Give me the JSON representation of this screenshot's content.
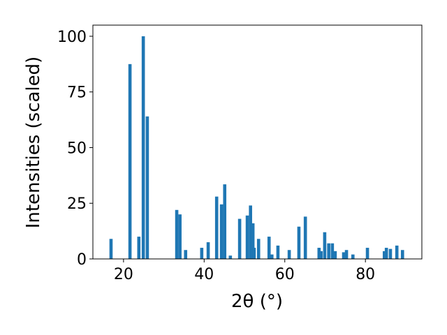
{
  "chart_data": {
    "type": "bar",
    "xlabel": "2θ (°)",
    "ylabel": "Intensities (scaled)",
    "x": [
      16.9,
      21.6,
      23.8,
      24.9,
      25.9,
      33.2,
      34.0,
      35.4,
      39.4,
      41.0,
      43.1,
      44.3,
      45.1,
      46.5,
      48.8,
      50.7,
      51.5,
      52.1,
      52.4,
      53.5,
      56.1,
      56.8,
      58.3,
      61.1,
      63.5,
      65.1,
      68.5,
      69.0,
      69.9,
      70.9,
      71.8,
      72.5,
      74.6,
      75.3,
      76.9,
      80.5,
      84.7,
      85.2,
      86.2,
      87.8,
      89.2
    ],
    "values": [
      9,
      87.5,
      10,
      100,
      64,
      22,
      20,
      4,
      5,
      7.5,
      28,
      24.5,
      33.5,
      1.5,
      18,
      19.5,
      24,
      16,
      5,
      9,
      10,
      2,
      6,
      4,
      14.5,
      19,
      5,
      3.5,
      12,
      7,
      7,
      3.5,
      3,
      4,
      2,
      5,
      3.5,
      5,
      4.5,
      6,
      4
    ],
    "color": "#1f77b4",
    "xlim": [
      12.4,
      94.0
    ],
    "xticks": [
      20,
      40,
      60,
      80
    ],
    "ylim": [
      0,
      105
    ],
    "yticks": [
      0,
      25,
      50,
      75,
      100
    ]
  }
}
